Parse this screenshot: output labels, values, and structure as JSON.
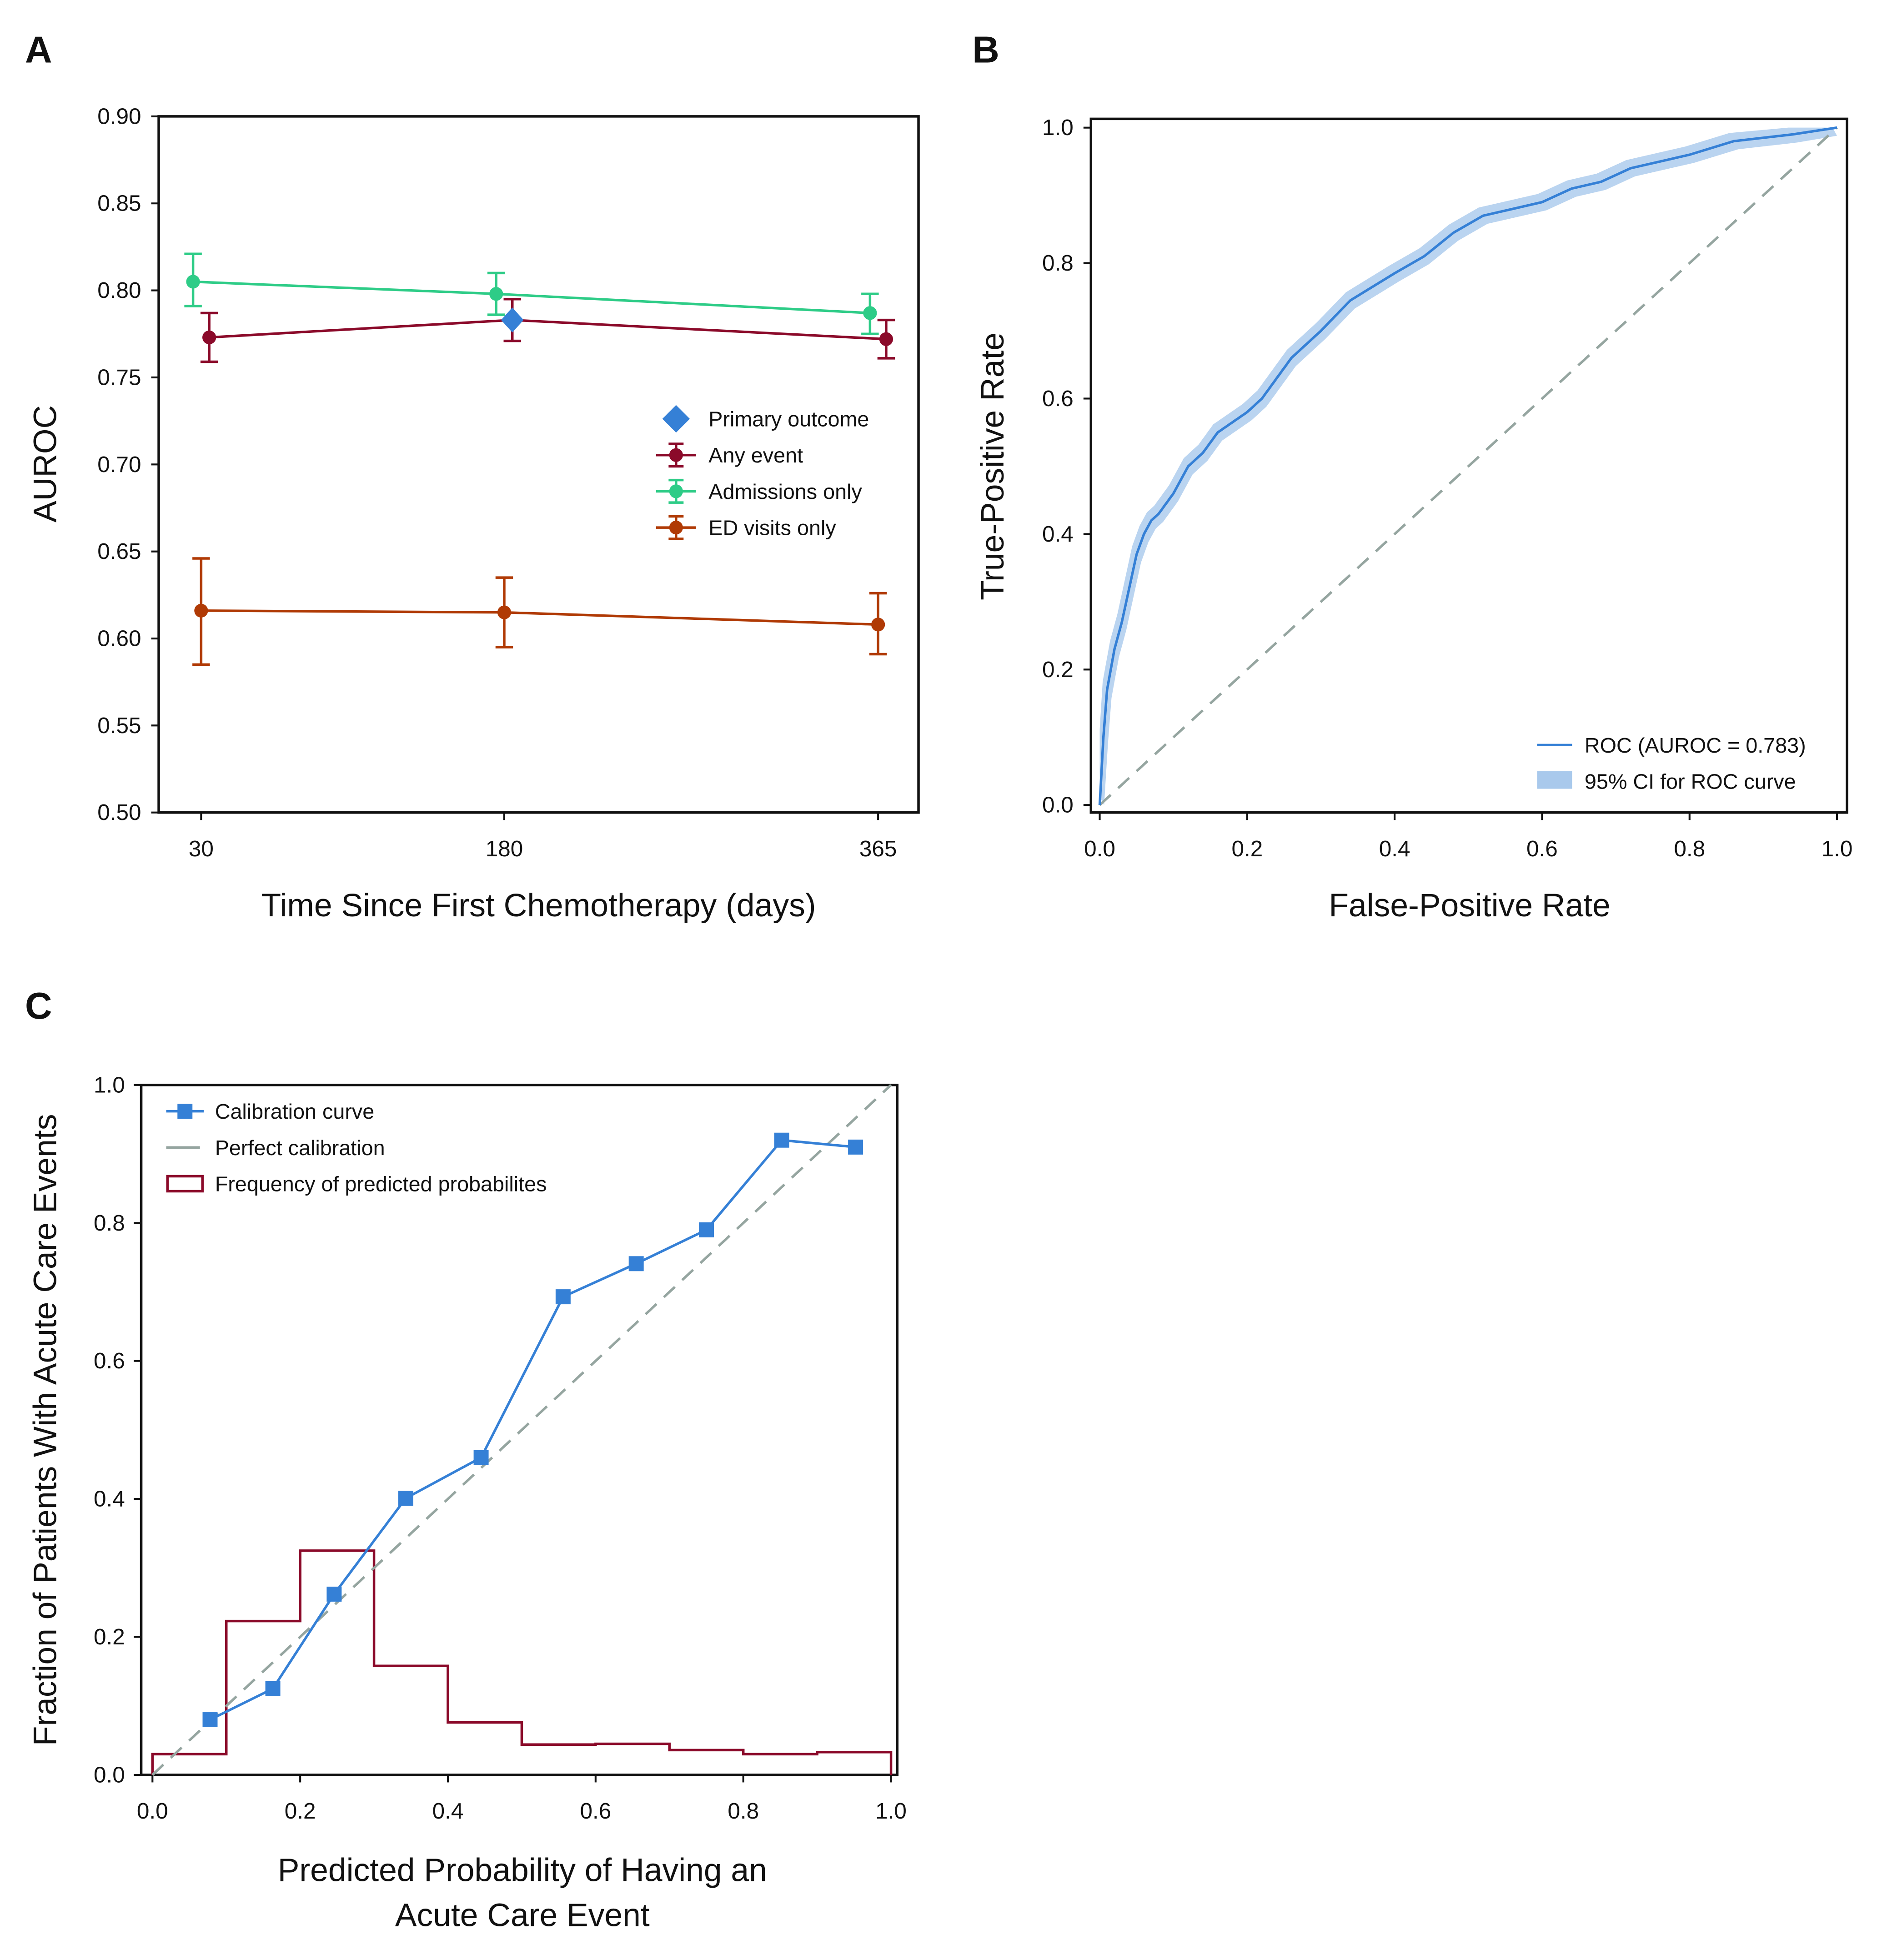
{
  "chart_data": [
    {
      "panel": "A",
      "type": "line",
      "xlabel": "Time Since First Chemotherapy (days)",
      "ylabel": "AUROC",
      "x": [
        30,
        180,
        365
      ],
      "xticks": [
        "30",
        "180",
        "365"
      ],
      "ylim": [
        0.5,
        0.9
      ],
      "xlim": [
        9,
        385
      ],
      "yticks": [
        "0.50",
        "0.55",
        "0.60",
        "0.65",
        "0.70",
        "0.75",
        "0.80",
        "0.85",
        "0.90"
      ],
      "series": [
        {
          "name": "Any event",
          "color": "#8b0a2a",
          "dodge": 4,
          "values": [
            0.773,
            0.783,
            0.772
          ],
          "lower": [
            0.759,
            0.771,
            0.761
          ],
          "upper": [
            0.787,
            0.795,
            0.783
          ]
        },
        {
          "name": "Admissions only",
          "color": "#2ecc87",
          "dodge": -4,
          "values": [
            0.805,
            0.798,
            0.787
          ],
          "lower": [
            0.791,
            0.786,
            0.775
          ],
          "upper": [
            0.821,
            0.81,
            0.798
          ]
        },
        {
          "name": "ED visits only",
          "color": "#b03a05",
          "dodge": 0,
          "values": [
            0.616,
            0.615,
            0.608
          ],
          "lower": [
            0.585,
            0.595,
            0.591
          ],
          "upper": [
            0.646,
            0.635,
            0.626
          ]
        }
      ],
      "primary_outcome": {
        "name": "Primary outcome",
        "color": "#3580d6",
        "x": 180,
        "value": 0.783,
        "dodge": 4
      }
    },
    {
      "panel": "B",
      "type": "line",
      "xlabel": "False-Positive Rate",
      "ylabel": "True-Positive Rate",
      "xlim": [
        0,
        1
      ],
      "ylim": [
        0,
        1
      ],
      "xticks": [
        "0.0",
        "0.2",
        "0.4",
        "0.6",
        "0.8",
        "1.0"
      ],
      "yticks": [
        "0.0",
        "0.2",
        "0.4",
        "0.6",
        "0.8",
        "1.0"
      ],
      "roc_label": "ROC (AUROC = 0.783)",
      "ci_label": "95% CI for ROC curve",
      "color": "#3580d6",
      "ci_color": "#a9c9ec",
      "diag_color": "#95a5a0",
      "roc": [
        [
          0,
          0
        ],
        [
          0.005,
          0.1
        ],
        [
          0.01,
          0.17
        ],
        [
          0.02,
          0.23
        ],
        [
          0.03,
          0.27
        ],
        [
          0.04,
          0.32
        ],
        [
          0.05,
          0.37
        ],
        [
          0.06,
          0.4
        ],
        [
          0.07,
          0.42
        ],
        [
          0.08,
          0.43
        ],
        [
          0.1,
          0.46
        ],
        [
          0.12,
          0.5
        ],
        [
          0.14,
          0.52
        ],
        [
          0.16,
          0.55
        ],
        [
          0.2,
          0.58
        ],
        [
          0.22,
          0.6
        ],
        [
          0.24,
          0.63
        ],
        [
          0.26,
          0.66
        ],
        [
          0.3,
          0.7
        ],
        [
          0.34,
          0.745
        ],
        [
          0.4,
          0.785
        ],
        [
          0.44,
          0.81
        ],
        [
          0.48,
          0.845
        ],
        [
          0.52,
          0.87
        ],
        [
          0.56,
          0.88
        ],
        [
          0.6,
          0.89
        ],
        [
          0.64,
          0.91
        ],
        [
          0.68,
          0.92
        ],
        [
          0.72,
          0.94
        ],
        [
          0.8,
          0.96
        ],
        [
          0.86,
          0.98
        ],
        [
          0.94,
          0.99
        ],
        [
          1,
          1
        ]
      ],
      "ci_halfwidth": 0.012
    },
    {
      "panel": "C",
      "type": "line",
      "xlabel_line1": "Predicted Probability of Having an",
      "xlabel_line2": "Acute Care Event",
      "ylabel": "Fraction of Patients With Acute Care Events",
      "xlim": [
        0,
        1
      ],
      "ylim": [
        0,
        1
      ],
      "xticks": [
        "0.0",
        "0.2",
        "0.4",
        "0.6",
        "0.8",
        "1.0"
      ],
      "yticks": [
        "0.0",
        "0.2",
        "0.4",
        "0.6",
        "0.8",
        "1.0"
      ],
      "calibration": {
        "name": "Calibration curve",
        "color": "#3580d6",
        "x": [
          0.078,
          0.163,
          0.246,
          0.343,
          0.445,
          0.556,
          0.655,
          0.75,
          0.852,
          0.952
        ],
        "y": [
          0.08,
          0.125,
          0.262,
          0.401,
          0.46,
          0.693,
          0.741,
          0.79,
          0.92,
          0.91
        ]
      },
      "perfect": {
        "name": "Perfect calibration",
        "color": "#95a5a0"
      },
      "histogram": {
        "name": "Frequency of predicted probabilites",
        "color": "#8b0a2a",
        "bins": [
          0,
          0.1,
          0.2,
          0.3,
          0.4,
          0.5,
          0.6,
          0.7,
          0.8,
          0.9,
          1.0
        ],
        "values": [
          0.03,
          0.223,
          0.325,
          0.158,
          0.076,
          0.044,
          0.045,
          0.036,
          0.03,
          0.033
        ]
      }
    }
  ],
  "panel_labels": [
    "A",
    "B",
    "C"
  ]
}
